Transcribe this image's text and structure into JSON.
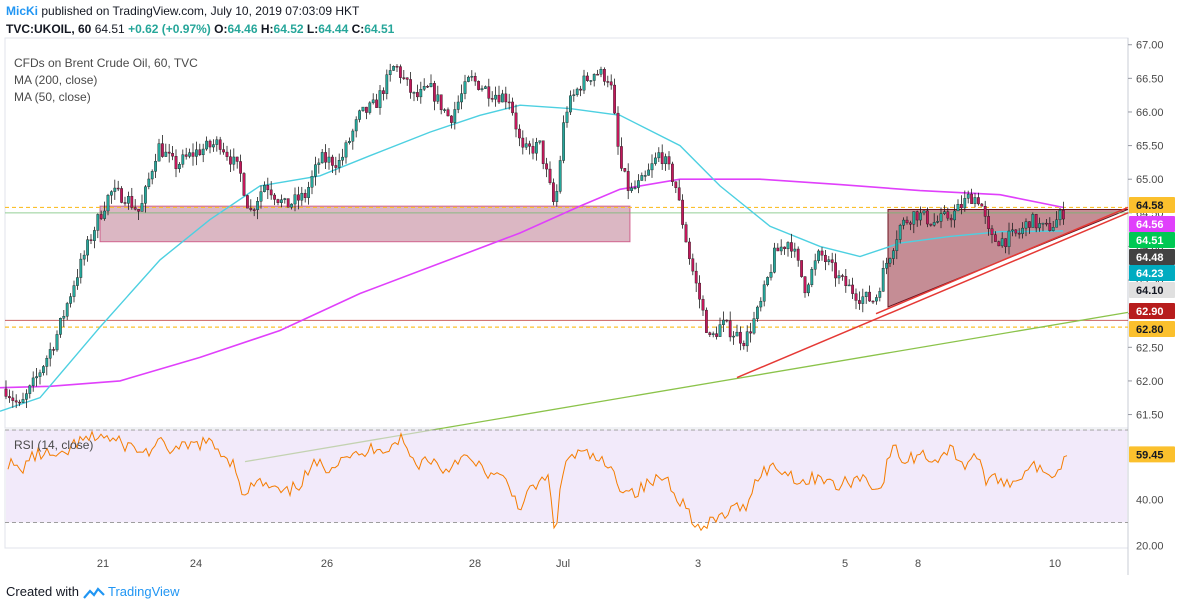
{
  "header": {
    "author": "MicKi",
    "published": "published on TradingView.com, July 10, 2019 07:03:09 HKT",
    "symbol": "TVC:UKOIL, 60",
    "last": "64.51",
    "change": "+0.62 (+0.97%)",
    "o_label": "O:",
    "o": "64.46",
    "h_label": "H:",
    "h": "64.52",
    "l_label": "L:",
    "l": "64.44",
    "c_label": "C:",
    "c": "64.51"
  },
  "legend": {
    "title": "CFDs on Brent Crude Oil, 60, TVC",
    "ma200": "MA (200, close)",
    "ma50": "MA (50, close)"
  },
  "rsi_label": "RSI (14, close)",
  "footer": {
    "created_with": "Created with",
    "brand": "TradingView"
  },
  "colors": {
    "up": "#26a69a",
    "down": "#c2185b",
    "ma50": "#4dd0e1",
    "ma200": "#e040fb",
    "rsi": "#f57c00",
    "trend_red": "#e53935",
    "trend_green": "#8bc34a",
    "zone": "#b0607a",
    "rsi_band": "#e9dcf7"
  },
  "chart_data": [
    {
      "type": "candlestick",
      "title": "CFDs on Brent Crude Oil, 60, TVC",
      "ylim": [
        61.3,
        67.1
      ],
      "price_ticks": [
        "67.00",
        "66.50",
        "66.00",
        "65.50",
        "65.00",
        "64.50",
        "64.00",
        "63.50",
        "63.00",
        "62.50",
        "62.00",
        "61.50"
      ],
      "x_ticks": [
        "21",
        "24",
        "26",
        "28",
        "Jul",
        "3",
        "5",
        "8",
        "10"
      ],
      "price_labels": [
        {
          "value": "64.58",
          "color": "#fbc02d",
          "text_color": "#131722"
        },
        {
          "value": "64.56",
          "color": "#e040fb",
          "text_color": "#ffffff"
        },
        {
          "value": "64.51",
          "color": "#00c853",
          "text_color": "#ffffff"
        },
        {
          "value": "64.48",
          "color": "#424242",
          "text_color": "#ffffff"
        },
        {
          "value": "64.23",
          "color": "#00acc1",
          "text_color": "#ffffff"
        },
        {
          "value": "64.10",
          "color": "#e0e0e0",
          "text_color": "#131722"
        },
        {
          "value": "62.90",
          "color": "#b71c1c",
          "text_color": "#ffffff"
        },
        {
          "value": "62.80",
          "color": "#fbc02d",
          "text_color": "#131722"
        }
      ],
      "series": [
        {
          "name": "MA (200, close)",
          "values": [
            [
              0,
              61.9
            ],
            [
              50,
              61.92
            ],
            [
              120,
              62.0
            ],
            [
              200,
              62.35
            ],
            [
              280,
              62.75
            ],
            [
              360,
              63.3
            ],
            [
              440,
              63.75
            ],
            [
              520,
              64.2
            ],
            [
              580,
              64.6
            ],
            [
              620,
              64.85
            ],
            [
              680,
              65.0
            ],
            [
              760,
              65.0
            ],
            [
              840,
              64.92
            ],
            [
              920,
              64.83
            ],
            [
              1000,
              64.77
            ],
            [
              1063,
              64.58
            ]
          ]
        },
        {
          "name": "MA (50, close)",
          "values": [
            [
              0,
              61.55
            ],
            [
              40,
              61.75
            ],
            [
              100,
              62.8
            ],
            [
              160,
              63.8
            ],
            [
              210,
              64.4
            ],
            [
              260,
              64.9
            ],
            [
              320,
              65.05
            ],
            [
              370,
              65.35
            ],
            [
              430,
              65.7
            ],
            [
              480,
              65.95
            ],
            [
              520,
              66.1
            ],
            [
              570,
              66.05
            ],
            [
              620,
              65.95
            ],
            [
              680,
              65.5
            ],
            [
              720,
              64.9
            ],
            [
              770,
              64.3
            ],
            [
              820,
              64.0
            ],
            [
              860,
              63.85
            ],
            [
              900,
              64.05
            ],
            [
              950,
              64.15
            ],
            [
              1000,
              64.22
            ],
            [
              1063,
              64.23
            ]
          ]
        }
      ],
      "price_path": [
        [
          5,
          61.9
        ],
        [
          20,
          61.6
        ],
        [
          35,
          62.0
        ],
        [
          55,
          62.6
        ],
        [
          75,
          63.5
        ],
        [
          95,
          64.3
        ],
        [
          110,
          64.8
        ],
        [
          125,
          64.75
        ],
        [
          140,
          64.5
        ],
        [
          158,
          65.5
        ],
        [
          175,
          65.2
        ],
        [
          195,
          65.4
        ],
        [
          220,
          65.55
        ],
        [
          240,
          65.1
        ],
        [
          250,
          64.5
        ],
        [
          265,
          64.95
        ],
        [
          285,
          64.6
        ],
        [
          305,
          64.75
        ],
        [
          320,
          65.3
        ],
        [
          340,
          65.25
        ],
        [
          360,
          65.95
        ],
        [
          375,
          66.1
        ],
        [
          395,
          66.7
        ],
        [
          415,
          66.2
        ],
        [
          430,
          66.35
        ],
        [
          450,
          65.9
        ],
        [
          470,
          66.5
        ],
        [
          490,
          66.3
        ],
        [
          510,
          66.2
        ],
        [
          522,
          65.4
        ],
        [
          540,
          65.5
        ],
        [
          555,
          64.55
        ],
        [
          565,
          66.0
        ],
        [
          580,
          66.4
        ],
        [
          595,
          66.6
        ],
        [
          610,
          66.5
        ],
        [
          620,
          65.2
        ],
        [
          630,
          64.8
        ],
        [
          645,
          65.0
        ],
        [
          660,
          65.4
        ],
        [
          675,
          64.95
        ],
        [
          690,
          63.8
        ],
        [
          700,
          63.2
        ],
        [
          710,
          62.6
        ],
        [
          722,
          62.85
        ],
        [
          735,
          62.7
        ],
        [
          745,
          62.6
        ],
        [
          760,
          63.1
        ],
        [
          775,
          63.9
        ],
        [
          790,
          64.1
        ],
        [
          805,
          63.4
        ],
        [
          820,
          63.9
        ],
        [
          840,
          63.5
        ],
        [
          860,
          63.25
        ],
        [
          875,
          63.2
        ],
        [
          885,
          63.7
        ],
        [
          900,
          64.3
        ],
        [
          915,
          64.5
        ],
        [
          935,
          64.35
        ],
        [
          955,
          64.5
        ],
        [
          970,
          64.75
        ],
        [
          980,
          64.7
        ],
        [
          990,
          64.1
        ],
        [
          1005,
          64.1
        ],
        [
          1020,
          64.2
        ],
        [
          1030,
          64.4
        ],
        [
          1045,
          64.25
        ],
        [
          1055,
          64.35
        ],
        [
          1063,
          64.51
        ]
      ],
      "trendlines": [
        {
          "name": "rising-support",
          "from": [
            737,
            62.05
          ],
          "to": [
            1128,
            64.5
          ]
        },
        {
          "name": "upper-support",
          "from": [
            876,
            63.0
          ],
          "to": [
            1128,
            64.58
          ]
        },
        {
          "name": "long-term-support",
          "from": [
            245,
            60.8
          ],
          "to": [
            1128,
            63.02
          ]
        }
      ],
      "levels": [
        "64.58",
        "62.80"
      ],
      "zones": [
        {
          "name": "resistance-zone",
          "from_x": 100,
          "to_x": 630,
          "low": 64.07,
          "high": 64.6
        },
        {
          "name": "triangle",
          "points": [
            [
              888,
              64.55
            ],
            [
              1063,
              64.55
            ],
            [
              1128,
              64.55
            ],
            [
              888,
              63.1
            ]
          ]
        }
      ]
    },
    {
      "type": "line",
      "title": "RSI (14, close)",
      "ylim": [
        19,
        70
      ],
      "y_ticks": [
        "40.00",
        "20.00"
      ],
      "band": [
        30,
        70
      ],
      "last_label": "59.45",
      "values": [
        [
          8,
          56
        ],
        [
          20,
          52
        ],
        [
          30,
          58
        ],
        [
          45,
          60
        ],
        [
          60,
          57
        ],
        [
          75,
          64
        ],
        [
          90,
          66
        ],
        [
          100,
          68
        ],
        [
          115,
          65
        ],
        [
          130,
          63
        ],
        [
          145,
          60
        ],
        [
          160,
          64
        ],
        [
          175,
          61
        ],
        [
          190,
          63
        ],
        [
          205,
          65
        ],
        [
          220,
          61
        ],
        [
          235,
          55
        ],
        [
          245,
          40
        ],
        [
          255,
          48
        ],
        [
          270,
          45
        ],
        [
          285,
          42
        ],
        [
          300,
          47
        ],
        [
          315,
          55
        ],
        [
          330,
          54
        ],
        [
          345,
          60
        ],
        [
          360,
          58
        ],
        [
          375,
          63
        ],
        [
          390,
          62
        ],
        [
          400,
          67
        ],
        [
          415,
          55
        ],
        [
          430,
          58
        ],
        [
          445,
          52
        ],
        [
          460,
          59
        ],
        [
          475,
          55
        ],
        [
          490,
          51
        ],
        [
          505,
          48
        ],
        [
          520,
          37
        ],
        [
          535,
          46
        ],
        [
          548,
          49
        ],
        [
          555,
          26
        ],
        [
          565,
          57
        ],
        [
          580,
          60
        ],
        [
          595,
          58
        ],
        [
          610,
          53
        ],
        [
          620,
          46
        ],
        [
          635,
          43
        ],
        [
          650,
          47
        ],
        [
          665,
          50
        ],
        [
          680,
          40
        ],
        [
          690,
          34
        ],
        [
          700,
          26
        ],
        [
          715,
          31
        ],
        [
          730,
          35
        ],
        [
          745,
          37
        ],
        [
          760,
          52
        ],
        [
          775,
          54
        ],
        [
          790,
          51
        ],
        [
          805,
          47
        ],
        [
          820,
          51
        ],
        [
          835,
          45
        ],
        [
          850,
          48
        ],
        [
          865,
          50
        ],
        [
          880,
          43
        ],
        [
          892,
          63
        ],
        [
          905,
          56
        ],
        [
          920,
          60
        ],
        [
          935,
          57
        ],
        [
          950,
          62
        ],
        [
          965,
          55
        ],
        [
          975,
          60
        ],
        [
          988,
          47
        ],
        [
          1000,
          49
        ],
        [
          1015,
          47
        ],
        [
          1030,
          56
        ],
        [
          1045,
          50
        ],
        [
          1055,
          52
        ],
        [
          1068,
          59.45
        ]
      ]
    }
  ]
}
